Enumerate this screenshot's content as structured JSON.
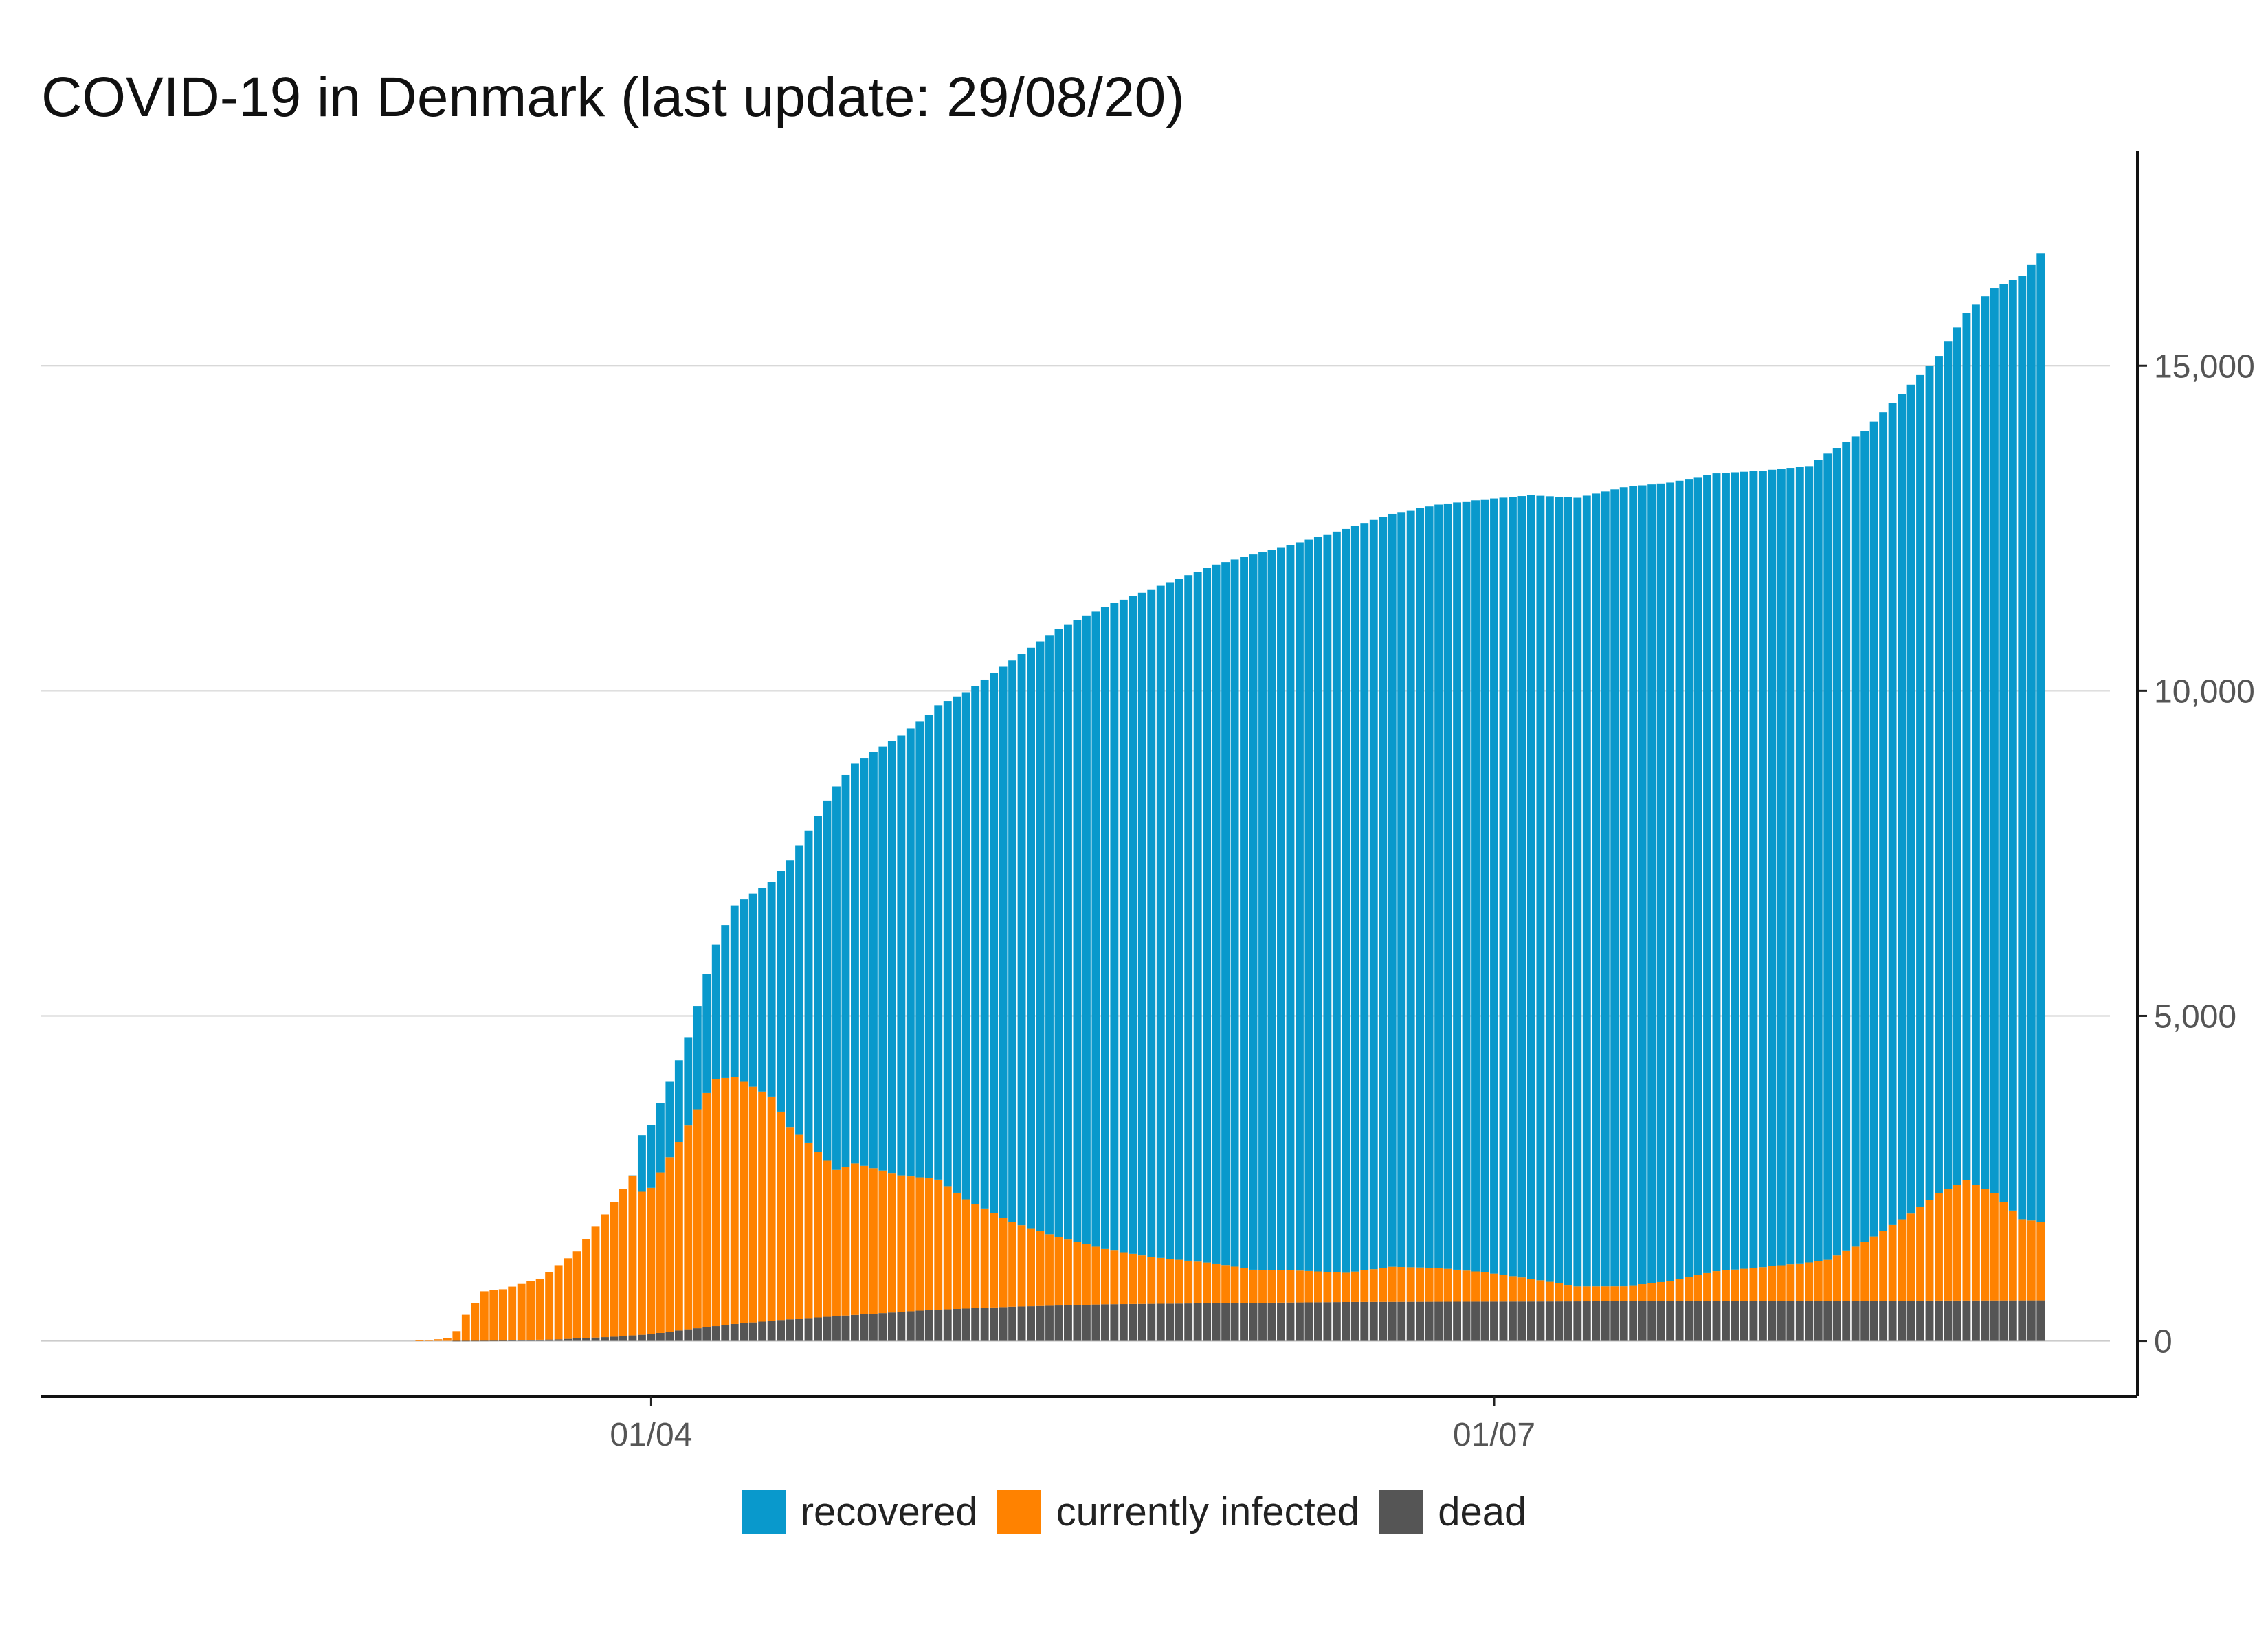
{
  "title": "COVID-19 in Denmark (last update: 29/08/20)",
  "chart_data": {
    "type": "bar",
    "stacked": true,
    "x_type": "date",
    "x_start": "2020-01-28",
    "x_end": "2020-08-29",
    "x_ticks": [
      "01/04",
      "01/07"
    ],
    "x_tick_dates": [
      "2020-04-01",
      "2020-07-01"
    ],
    "y_ticks": [
      "0",
      "5,000",
      "10,000",
      "15,000"
    ],
    "y_tick_values": [
      0,
      5000,
      10000,
      15000
    ],
    "ylim": [
      -850,
      18300
    ],
    "y_axis_side": "right",
    "grid": "horizontal",
    "legend_position": "bottom",
    "legend": [
      "recovered",
      "currently infected",
      "dead"
    ],
    "colors": {
      "recovered": "#0999cc",
      "infected": "#ff8200",
      "dead": "#555555"
    },
    "series_keypoints": {
      "dead": [
        [
          "2020-01-28",
          0
        ],
        [
          "2020-03-10",
          0
        ],
        [
          "2020-03-16",
          4
        ],
        [
          "2020-03-22",
          24
        ],
        [
          "2020-03-28",
          65
        ],
        [
          "2020-04-01",
          104
        ],
        [
          "2020-04-05",
          179
        ],
        [
          "2020-04-10",
          260
        ],
        [
          "2020-04-15",
          321
        ],
        [
          "2020-04-20",
          370
        ],
        [
          "2020-04-25",
          418
        ],
        [
          "2020-05-01",
          475
        ],
        [
          "2020-05-10",
          526
        ],
        [
          "2020-05-20",
          563
        ],
        [
          "2020-06-01",
          580
        ],
        [
          "2020-06-15",
          598
        ],
        [
          "2020-07-01",
          605
        ],
        [
          "2020-08-01",
          615
        ],
        [
          "2020-08-29",
          623
        ]
      ],
      "infected": [
        [
          "2020-01-28",
          0
        ],
        [
          "2020-03-06",
          0
        ],
        [
          "2020-03-08",
          10
        ],
        [
          "2020-03-10",
          40
        ],
        [
          "2020-03-11",
          150
        ],
        [
          "2020-03-12",
          400
        ],
        [
          "2020-03-13",
          580
        ],
        [
          "2020-03-14",
          760
        ],
        [
          "2020-03-16",
          790
        ],
        [
          "2020-03-20",
          940
        ],
        [
          "2020-03-24",
          1340
        ],
        [
          "2020-03-28",
          2070
        ],
        [
          "2020-03-30",
          2460
        ],
        [
          "2020-03-31",
          2200
        ],
        [
          "2020-04-01",
          2250
        ],
        [
          "2020-04-04",
          2900
        ],
        [
          "2020-04-07",
          3600
        ],
        [
          "2020-04-08",
          3800
        ],
        [
          "2020-04-10",
          3800
        ],
        [
          "2020-04-14",
          3450
        ],
        [
          "2020-04-16",
          2960
        ],
        [
          "2020-04-18",
          2700
        ],
        [
          "2020-04-21",
          2250
        ],
        [
          "2020-04-23",
          2330
        ],
        [
          "2020-04-28",
          2100
        ],
        [
          "2020-05-02",
          2000
        ],
        [
          "2020-05-05",
          1680
        ],
        [
          "2020-05-10",
          1300
        ],
        [
          "2020-05-15",
          1050
        ],
        [
          "2020-05-20",
          850
        ],
        [
          "2020-05-25",
          720
        ],
        [
          "2020-06-01",
          610
        ],
        [
          "2020-06-05",
          510
        ],
        [
          "2020-06-10",
          490
        ],
        [
          "2020-06-15",
          450
        ],
        [
          "2020-06-20",
          540
        ],
        [
          "2020-06-25",
          520
        ],
        [
          "2020-06-30",
          450
        ],
        [
          "2020-07-05",
          350
        ],
        [
          "2020-07-10",
          230
        ],
        [
          "2020-07-15",
          230
        ],
        [
          "2020-07-20",
          310
        ],
        [
          "2020-07-25",
          460
        ],
        [
          "2020-07-30",
          520
        ],
        [
          "2020-08-04",
          590
        ],
        [
          "2020-08-06",
          630
        ],
        [
          "2020-08-10",
          900
        ],
        [
          "2020-08-15",
          1340
        ],
        [
          "2020-08-18",
          1650
        ],
        [
          "2020-08-21",
          1850
        ],
        [
          "2020-08-24",
          1650
        ],
        [
          "2020-08-27",
          1250
        ],
        [
          "2020-08-29",
          1210
        ]
      ],
      "recovered": [
        [
          "2020-01-28",
          0
        ],
        [
          "2020-03-28",
          0
        ],
        [
          "2020-03-30",
          1
        ],
        [
          "2020-03-31",
          870
        ],
        [
          "2020-04-01",
          970
        ],
        [
          "2020-04-05",
          1350
        ],
        [
          "2020-04-08",
          2070
        ],
        [
          "2020-04-10",
          2640
        ],
        [
          "2020-04-14",
          3300
        ],
        [
          "2020-04-16",
          4100
        ],
        [
          "2020-04-18",
          4800
        ],
        [
          "2020-04-21",
          5900
        ],
        [
          "2020-04-25",
          6400
        ],
        [
          "2020-05-01",
          7130
        ],
        [
          "2020-05-05",
          7800
        ],
        [
          "2020-05-10",
          8640
        ],
        [
          "2020-05-15",
          9360
        ],
        [
          "2020-05-20",
          9880
        ],
        [
          "2020-05-25",
          10270
        ],
        [
          "2020-06-01",
          10750
        ],
        [
          "2020-06-05",
          11000
        ],
        [
          "2020-06-10",
          11200
        ],
        [
          "2020-06-15",
          11440
        ],
        [
          "2020-06-20",
          11580
        ],
        [
          "2020-06-25",
          11740
        ],
        [
          "2020-06-30",
          11890
        ],
        [
          "2020-07-05",
          12050
        ],
        [
          "2020-07-10",
          12130
        ],
        [
          "2020-07-15",
          12290
        ],
        [
          "2020-07-20",
          12280
        ],
        [
          "2020-07-25",
          12270
        ],
        [
          "2020-07-30",
          12250
        ],
        [
          "2020-08-04",
          12250
        ],
        [
          "2020-08-06",
          12400
        ],
        [
          "2020-08-10",
          12480
        ],
        [
          "2020-08-15",
          12750
        ],
        [
          "2020-08-18",
          12880
        ],
        [
          "2020-08-21",
          13340
        ],
        [
          "2020-08-25",
          14120
        ],
        [
          "2020-08-29",
          14900
        ]
      ]
    }
  }
}
